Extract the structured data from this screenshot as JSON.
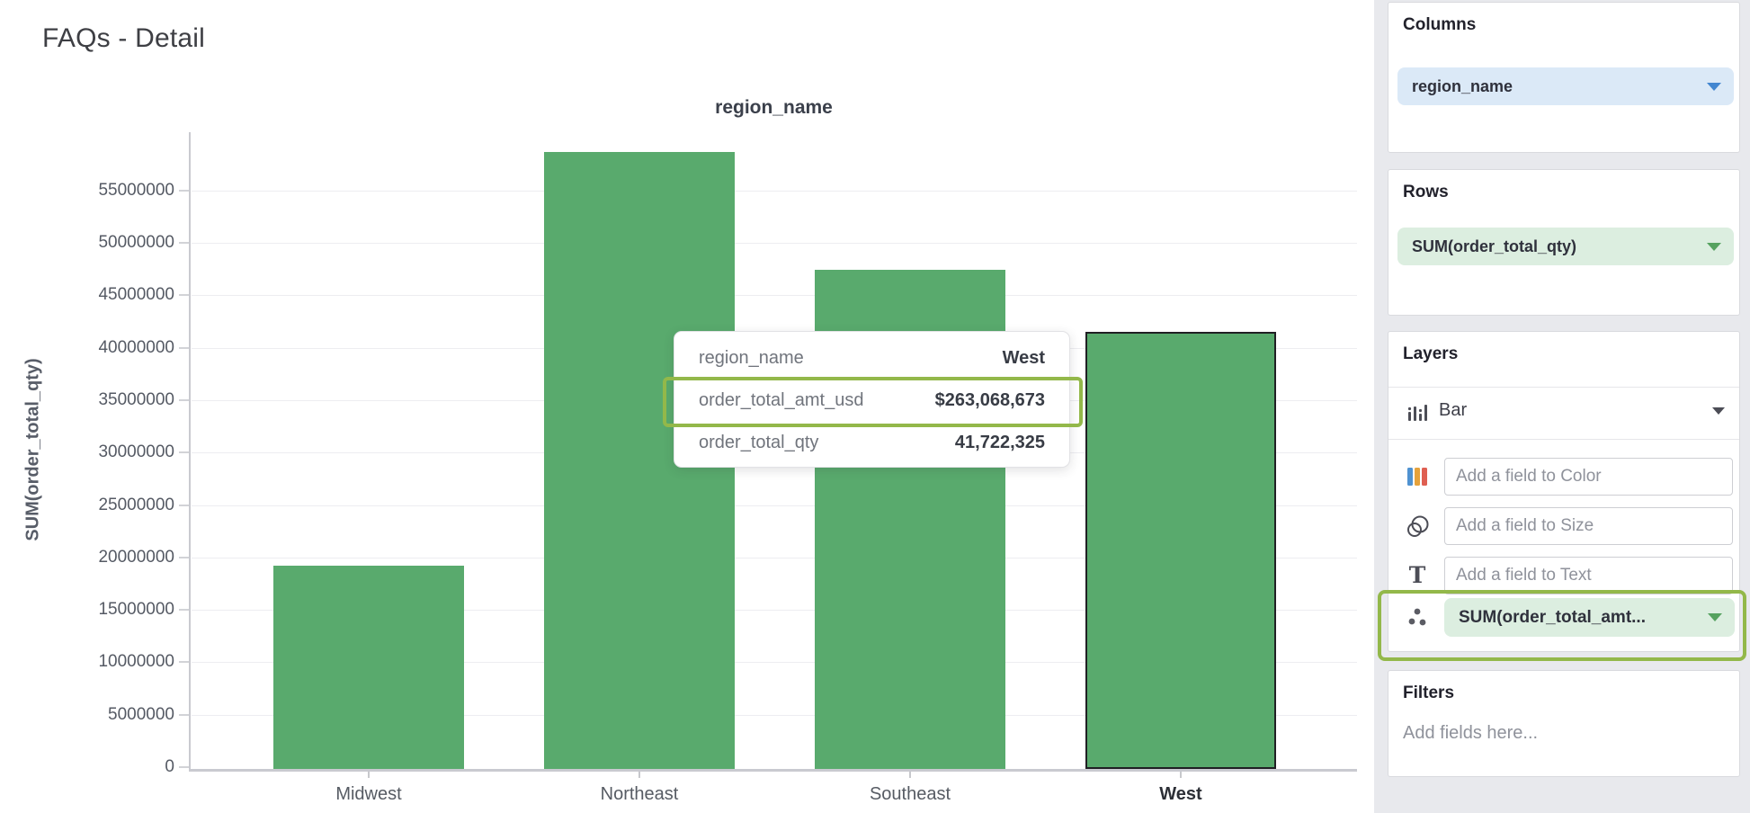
{
  "page": {
    "title": "FAQs - Detail"
  },
  "chart_data": {
    "type": "bar",
    "title": "region_name",
    "xlabel": "region_name",
    "ylabel": "SUM(order_total_qty)",
    "categories": [
      "Midwest",
      "Northeast",
      "Southeast",
      "West"
    ],
    "values": [
      19400000,
      58800000,
      47600000,
      41722325
    ],
    "y_ticks": [
      0,
      5000000,
      10000000,
      15000000,
      20000000,
      25000000,
      30000000,
      35000000,
      40000000,
      45000000,
      50000000,
      55000000
    ],
    "y_tick_labels": [
      "0",
      "5000000",
      "10000000",
      "15000000",
      "20000000",
      "25000000",
      "30000000",
      "35000000",
      "40000000",
      "45000000",
      "50000000",
      "55000000"
    ],
    "ylim": [
      0,
      60600000
    ],
    "grid": true,
    "legend_position": "none",
    "selected_category": "West",
    "bar_color": "#59aa6d"
  },
  "tooltip": {
    "rows": [
      {
        "label": "region_name",
        "value": "West"
      },
      {
        "label": "order_total_amt_usd",
        "value": "$263,068,673"
      },
      {
        "label": "order_total_qty",
        "value": "41,722,325"
      }
    ],
    "highlighted_row": "order_total_amt_usd"
  },
  "panel": {
    "columns": {
      "heading": "Columns",
      "field": "region_name"
    },
    "rows": {
      "heading": "Rows",
      "field": "SUM(order_total_qty)"
    },
    "layers": {
      "heading": "Layers",
      "layer_type": "Bar",
      "fields": [
        {
          "icon": "color-bars-icon",
          "placeholder": "Add a field to Color"
        },
        {
          "icon": "size-circles-icon",
          "placeholder": "Add a field to Size"
        },
        {
          "icon": "text-icon",
          "placeholder": "Add a field to Text"
        }
      ],
      "detail_field": "SUM(order_total_amt..."
    },
    "filters": {
      "heading": "Filters",
      "placeholder": "Add fields here..."
    }
  },
  "colors": {
    "bar_fill": "#59aa6d",
    "selected_bar_outline": "#202024",
    "annotation_green": "#93b84a",
    "pill_blue_bg": "#dbe9f7",
    "pill_blue_caret": "#4286d0",
    "pill_green_bg": "#dceee0",
    "pill_green_caret": "#55a25f",
    "panel_bg": "#e8e9ed",
    "axis_line": "#c9cad0",
    "gridline": "#ededf1"
  }
}
